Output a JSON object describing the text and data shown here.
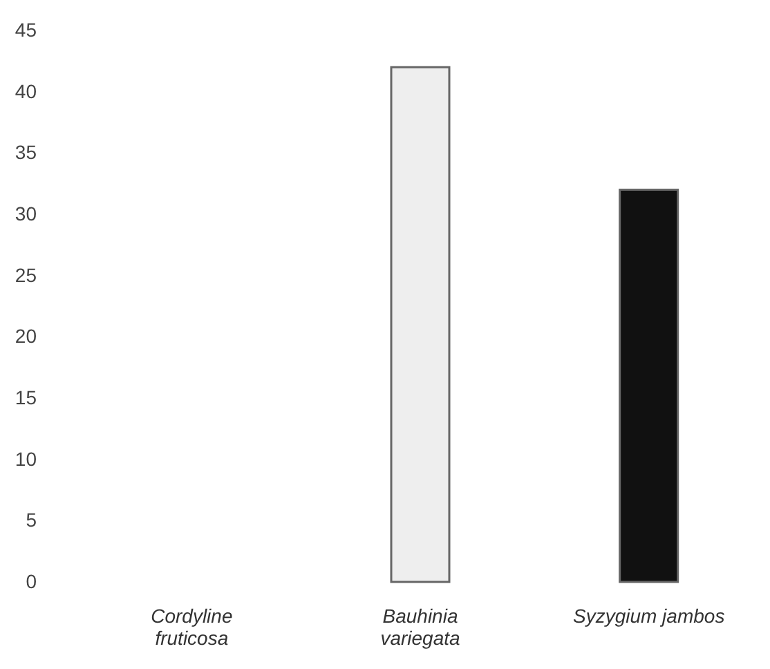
{
  "chart_data": {
    "type": "bar",
    "categories": [
      "Cordyline fruticosa",
      "Bauhinia variegata",
      "Syzygium jambos"
    ],
    "values": [
      0,
      42,
      32
    ],
    "colors": [
      "#eeeeee",
      "#eeeeee",
      "#111111"
    ],
    "ylim": [
      0,
      45
    ],
    "yticks": [
      0,
      5,
      10,
      15,
      20,
      25,
      30,
      35,
      40,
      45
    ],
    "grid": false
  }
}
